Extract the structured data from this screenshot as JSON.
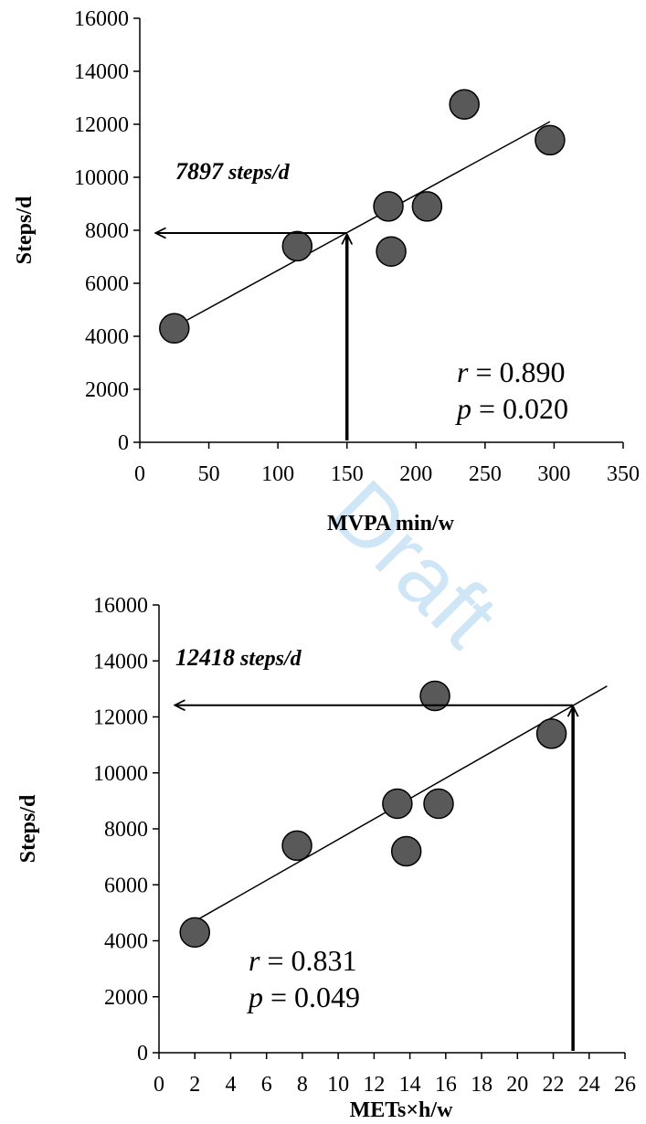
{
  "watermark": "Draft",
  "chart_data": [
    {
      "type": "scatter",
      "xlabel": "MVPA min/w",
      "ylabel": "Steps/d",
      "xlim": [
        0,
        350
      ],
      "ylim": [
        0,
        16000
      ],
      "xticks": [
        0,
        50,
        100,
        150,
        200,
        250,
        300,
        350
      ],
      "yticks": [
        0,
        2000,
        4000,
        6000,
        8000,
        10000,
        12000,
        14000,
        16000
      ],
      "points": [
        {
          "x": 25,
          "y": 4300
        },
        {
          "x": 114,
          "y": 7400
        },
        {
          "x": 180,
          "y": 8900
        },
        {
          "x": 182,
          "y": 7200
        },
        {
          "x": 208,
          "y": 8900
        },
        {
          "x": 235,
          "y": 12750
        },
        {
          "x": 297,
          "y": 11400
        }
      ],
      "trendline": {
        "x1": 25,
        "y1": 4350,
        "x2": 297,
        "y2": 12100
      },
      "annotation": {
        "x": 150,
        "y": 7897,
        "value_label": "7897",
        "unit_label": " steps/d"
      },
      "stats": {
        "r_label": "r",
        "r_value": " = 0.890",
        "p_label": "p",
        "p_value": " = 0.020"
      },
      "grid": false,
      "legend": "none"
    },
    {
      "type": "scatter",
      "xlabel": "METs×h/w",
      "ylabel": "Steps/d",
      "xlim": [
        0,
        26
      ],
      "ylim": [
        0,
        16000
      ],
      "xticks": [
        0,
        2,
        4,
        6,
        8,
        10,
        12,
        14,
        16,
        18,
        20,
        22,
        24,
        26
      ],
      "yticks": [
        0,
        2000,
        4000,
        6000,
        8000,
        10000,
        12000,
        14000,
        16000
      ],
      "points": [
        {
          "x": 2.0,
          "y": 4300
        },
        {
          "x": 7.7,
          "y": 7400
        },
        {
          "x": 13.3,
          "y": 8900
        },
        {
          "x": 13.8,
          "y": 7200
        },
        {
          "x": 15.6,
          "y": 8900
        },
        {
          "x": 15.4,
          "y": 12750
        },
        {
          "x": 21.9,
          "y": 11400
        }
      ],
      "trendline": {
        "x1": 2.0,
        "y1": 4700,
        "x2": 25.0,
        "y2": 13100
      },
      "annotation": {
        "x": 23.1,
        "y": 12418,
        "value_label": "12418",
        "unit_label": " steps/d"
      },
      "stats": {
        "r_label": "r",
        "r_value": " = 0.831",
        "p_label": "p",
        "p_value": " = 0.049"
      },
      "grid": false,
      "legend": "none"
    }
  ]
}
